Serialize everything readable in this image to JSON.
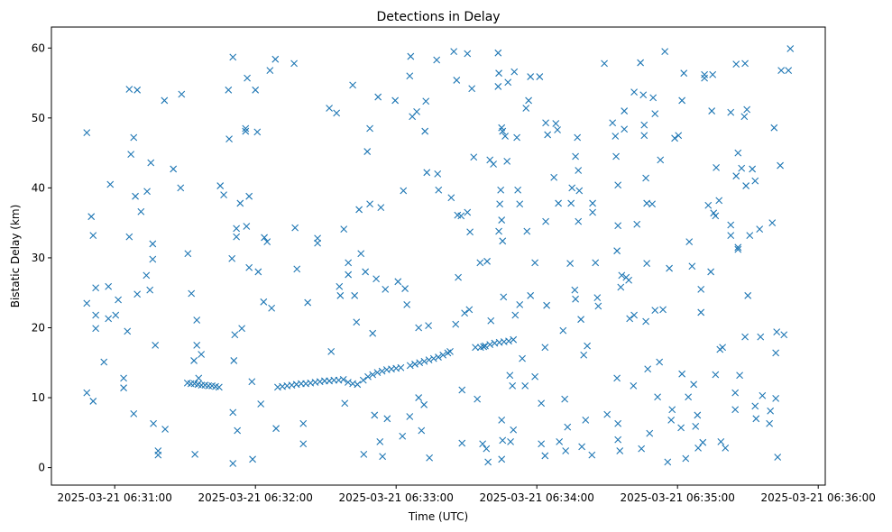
{
  "chart_data": {
    "type": "scatter",
    "title": "Detections in Delay",
    "xlabel": "Time (UTC)",
    "ylabel": "Bistatic Delay (km)",
    "x_units": "seconds after 2025-03-21 06:30:00",
    "xlim": [
      33,
      363
    ],
    "ylim": [
      -2.5,
      63
    ],
    "grid": false,
    "marker": "x",
    "color": "#1f77b4",
    "x_ticks": [
      {
        "value": 60,
        "label": "2025-03-21 06:31:00"
      },
      {
        "value": 120,
        "label": "2025-03-21 06:32:00"
      },
      {
        "value": 180,
        "label": "2025-03-21 06:33:00"
      },
      {
        "value": 240,
        "label": "2025-03-21 06:34:00"
      },
      {
        "value": 300,
        "label": "2025-03-21 06:35:00"
      },
      {
        "value": 360,
        "label": "2025-03-21 06:36:00"
      }
    ],
    "y_ticks": [
      {
        "value": 0,
        "label": "0"
      },
      {
        "value": 10,
        "label": "10"
      },
      {
        "value": 20,
        "label": "20"
      },
      {
        "value": 30,
        "label": "30"
      },
      {
        "value": 40,
        "label": "40"
      },
      {
        "value": 50,
        "label": "50"
      },
      {
        "value": 60,
        "label": "60"
      }
    ],
    "points": [
      [
        48.1,
        47.9
      ],
      [
        48.1,
        10.7
      ],
      [
        48.1,
        23.5
      ],
      [
        50.0,
        35.9
      ],
      [
        50.8,
        33.2
      ],
      [
        50.8,
        9.5
      ],
      [
        51.9,
        25.7
      ],
      [
        51.9,
        21.8
      ],
      [
        51.9,
        19.9
      ],
      [
        55.4,
        15.1
      ],
      [
        57.3,
        25.9
      ],
      [
        57.3,
        21.3
      ],
      [
        58.1,
        40.5
      ],
      [
        60.4,
        21.8
      ],
      [
        61.5,
        24.0
      ],
      [
        63.8,
        11.4
      ],
      [
        63.8,
        12.8
      ],
      [
        65.4,
        19.5
      ],
      [
        66.2,
        33.0
      ],
      [
        66.2,
        54.1
      ],
      [
        66.9,
        44.8
      ],
      [
        68.1,
        47.2
      ],
      [
        68.1,
        7.7
      ],
      [
        68.8,
        38.8
      ],
      [
        69.6,
        54.0
      ],
      [
        69.6,
        24.8
      ],
      [
        71.2,
        36.6
      ],
      [
        73.5,
        27.5
      ],
      [
        73.8,
        39.5
      ],
      [
        75.0,
        25.4
      ],
      [
        75.4,
        43.6
      ],
      [
        76.2,
        29.8
      ],
      [
        76.2,
        32.0
      ],
      [
        76.5,
        6.3
      ],
      [
        77.3,
        17.5
      ],
      [
        78.5,
        2.4
      ],
      [
        78.5,
        1.8
      ],
      [
        81.2,
        52.5
      ],
      [
        81.5,
        5.5
      ],
      [
        85.0,
        42.7
      ],
      [
        88.1,
        40.0
      ],
      [
        88.5,
        53.4
      ],
      [
        91.2,
        30.6
      ],
      [
        92.7,
        24.9
      ],
      [
        93.8,
        15.3
      ],
      [
        95.0,
        21.1
      ],
      [
        95.0,
        17.5
      ],
      [
        94.2,
        1.9
      ],
      [
        95.8,
        12.8
      ],
      [
        96.9,
        16.2
      ],
      [
        91,
        12.1
      ],
      [
        92.5,
        12.0
      ],
      [
        94,
        12.0
      ],
      [
        95.5,
        11.9
      ],
      [
        97,
        11.8
      ],
      [
        98.5,
        11.8
      ],
      [
        100,
        11.7
      ],
      [
        101.5,
        11.7
      ],
      [
        103,
        11.6
      ],
      [
        104.5,
        11.5
      ],
      [
        105.0,
        40.3
      ],
      [
        106.5,
        39.0
      ],
      [
        108.5,
        54.0
      ],
      [
        108.8,
        47.0
      ],
      [
        110.0,
        29.9
      ],
      [
        111.9,
        33.0
      ],
      [
        111.9,
        34.2
      ],
      [
        110.4,
        58.7
      ],
      [
        110.8,
        15.3
      ],
      [
        110.4,
        7.9
      ],
      [
        110.4,
        0.6
      ],
      [
        111.2,
        19.0
      ],
      [
        112.3,
        5.3
      ],
      [
        113.5,
        37.8
      ],
      [
        114.2,
        19.9
      ],
      [
        115.8,
        48.5
      ],
      [
        115.8,
        48.1
      ],
      [
        116.5,
        55.7
      ],
      [
        116.2,
        34.5
      ],
      [
        117.3,
        38.8
      ],
      [
        117.3,
        28.6
      ],
      [
        118.5,
        12.3
      ],
      [
        118.8,
        1.2
      ],
      [
        120.0,
        54.0
      ],
      [
        120.8,
        48.0
      ],
      [
        121.2,
        28.0
      ],
      [
        122.3,
        9.1
      ],
      [
        123.5,
        23.7
      ],
      [
        123.8,
        32.9
      ],
      [
        125.0,
        32.3
      ],
      [
        126.9,
        22.8
      ],
      [
        126.2,
        56.8
      ],
      [
        128.5,
        58.4
      ],
      [
        128.8,
        5.6
      ],
      [
        129.5,
        11.5
      ],
      [
        131.5,
        11.6
      ],
      [
        133.5,
        11.7
      ],
      [
        135.5,
        11.8
      ],
      [
        137.5,
        11.9
      ],
      [
        139.5,
        12.0
      ],
      [
        141.5,
        12.0
      ],
      [
        143.5,
        12.1
      ],
      [
        145.5,
        12.2
      ],
      [
        147.5,
        12.3
      ],
      [
        149.5,
        12.4
      ],
      [
        151.5,
        12.4
      ],
      [
        153.5,
        12.5
      ],
      [
        155.5,
        12.5
      ],
      [
        157.5,
        12.6
      ],
      [
        159.5,
        12.2
      ],
      [
        161.5,
        12.0
      ],
      [
        163.5,
        11.9
      ],
      [
        136.5,
        57.8
      ],
      [
        136.9,
        34.3
      ],
      [
        137.7,
        28.4
      ],
      [
        140.4,
        3.4
      ],
      [
        140.4,
        6.3
      ],
      [
        142.3,
        23.6
      ],
      [
        146.5,
        32.1
      ],
      [
        146.5,
        32.8
      ],
      [
        151.5,
        51.4
      ],
      [
        152.3,
        16.6
      ],
      [
        154.6,
        50.7
      ],
      [
        155.8,
        25.9
      ],
      [
        156.2,
        24.6
      ],
      [
        157.7,
        34.1
      ],
      [
        158.1,
        9.2
      ],
      [
        159.6,
        29.3
      ],
      [
        159.6,
        27.6
      ],
      [
        161.5,
        54.7
      ],
      [
        162.3,
        24.6
      ],
      [
        163.1,
        20.8
      ],
      [
        164.2,
        36.9
      ],
      [
        165.0,
        30.6
      ],
      [
        166.2,
        1.9
      ],
      [
        166.9,
        28.0
      ],
      [
        167.7,
        45.2
      ],
      [
        168.8,
        48.5
      ],
      [
        168.8,
        37.7
      ],
      [
        170.0,
        19.2
      ],
      [
        170.8,
        7.5
      ],
      [
        171.5,
        27.0
      ],
      [
        172.3,
        53.0
      ],
      [
        173.1,
        3.7
      ],
      [
        173.5,
        37.2
      ],
      [
        174.2,
        1.6
      ],
      [
        175.4,
        25.5
      ],
      [
        176.2,
        7.0
      ],
      [
        166,
        12.5
      ],
      [
        168,
        13.0
      ],
      [
        170,
        13.3
      ],
      [
        172,
        13.6
      ],
      [
        174,
        13.8
      ],
      [
        176,
        14.0
      ],
      [
        178,
        14.1
      ],
      [
        180,
        14.2
      ],
      [
        182,
        14.3
      ],
      [
        179.6,
        52.5
      ],
      [
        180.8,
        26.6
      ],
      [
        182.7,
        4.5
      ],
      [
        183.1,
        39.6
      ],
      [
        183.8,
        25.6
      ],
      [
        184.6,
        23.3
      ],
      [
        185.8,
        7.3
      ],
      [
        185.8,
        56.0
      ],
      [
        186.2,
        58.8
      ],
      [
        186.9,
        50.2
      ],
      [
        188.8,
        50.9
      ],
      [
        189.6,
        20.0
      ],
      [
        189.6,
        10.0
      ],
      [
        190.8,
        5.3
      ],
      [
        191.9,
        9.0
      ],
      [
        192.3,
        48.1
      ],
      [
        192.7,
        52.4
      ],
      [
        193.1,
        42.2
      ],
      [
        193.8,
        20.3
      ],
      [
        194.2,
        1.4
      ],
      [
        197.3,
        58.3
      ],
      [
        197.7,
        42.0
      ],
      [
        198.1,
        39.7
      ],
      [
        186,
        14.6
      ],
      [
        188,
        14.8
      ],
      [
        190,
        15.0
      ],
      [
        192,
        15.2
      ],
      [
        194,
        15.4
      ],
      [
        196,
        15.6
      ],
      [
        198,
        15.8
      ],
      [
        200,
        16.1
      ],
      [
        202,
        16.4
      ],
      [
        203,
        16.6
      ],
      [
        203.5,
        38.6
      ],
      [
        204.6,
        59.5
      ],
      [
        205.4,
        20.5
      ],
      [
        205.8,
        55.4
      ],
      [
        206.2,
        36.1
      ],
      [
        206.5,
        27.2
      ],
      [
        207.7,
        36.0
      ],
      [
        208.1,
        3.5
      ],
      [
        208.1,
        11.1
      ],
      [
        209.2,
        22.1
      ],
      [
        210.4,
        36.5
      ],
      [
        210.4,
        59.2
      ],
      [
        211.2,
        22.6
      ],
      [
        211.5,
        33.7
      ],
      [
        212.3,
        54.2
      ],
      [
        213.1,
        44.4
      ],
      [
        213.8,
        17.2
      ],
      [
        214.6,
        9.8
      ],
      [
        215.8,
        29.3
      ],
      [
        216.9,
        3.4
      ],
      [
        217.3,
        17.3
      ],
      [
        218.5,
        2.7
      ],
      [
        218.8,
        29.5
      ],
      [
        219.2,
        0.8
      ],
      [
        220.0,
        44.0
      ],
      [
        220.4,
        21.0
      ],
      [
        221.5,
        43.4
      ],
      [
        223.5,
        54.5
      ],
      [
        223.5,
        59.3
      ],
      [
        223.8,
        56.4
      ],
      [
        223.8,
        33.8
      ],
      [
        224.2,
        37.7
      ],
      [
        224.6,
        39.7
      ],
      [
        225.0,
        35.4
      ],
      [
        225.0,
        48.6
      ],
      [
        225.4,
        32.4
      ],
      [
        225.0,
        6.8
      ],
      [
        225.0,
        1.2
      ],
      [
        225.4,
        3.9
      ],
      [
        225.8,
        24.4
      ],
      [
        225.4,
        48.1
      ],
      [
        226.5,
        47.4
      ],
      [
        227.3,
        43.8
      ],
      [
        227.7,
        55.1
      ],
      [
        228.5,
        13.2
      ],
      [
        228.8,
        3.7
      ],
      [
        229.6,
        11.7
      ],
      [
        230.0,
        5.4
      ],
      [
        230.4,
        56.6
      ],
      [
        230.8,
        21.8
      ],
      [
        216,
        17.2
      ],
      [
        218,
        17.4
      ],
      [
        220,
        17.6
      ],
      [
        222,
        17.8
      ],
      [
        224,
        17.9
      ],
      [
        226,
        18.0
      ],
      [
        228,
        18.1
      ],
      [
        230,
        18.3
      ],
      [
        231.5,
        47.2
      ],
      [
        231.9,
        39.7
      ],
      [
        232.7,
        37.7
      ],
      [
        232.7,
        23.3
      ],
      [
        233.8,
        15.6
      ],
      [
        235.0,
        11.7
      ],
      [
        235.4,
        51.4
      ],
      [
        235.8,
        33.8
      ],
      [
        236.5,
        52.5
      ],
      [
        237.3,
        55.9
      ],
      [
        237.3,
        24.6
      ],
      [
        239.2,
        29.3
      ],
      [
        239.2,
        13.0
      ],
      [
        241.2,
        55.9
      ],
      [
        241.9,
        3.4
      ],
      [
        241.9,
        9.2
      ],
      [
        243.5,
        1.7
      ],
      [
        243.5,
        17.2
      ],
      [
        244.2,
        23.2
      ],
      [
        243.8,
        35.2
      ],
      [
        243.8,
        49.3
      ],
      [
        244.6,
        47.6
      ],
      [
        247.3,
        41.5
      ],
      [
        248.1,
        49.2
      ],
      [
        248.8,
        48.3
      ],
      [
        249.2,
        37.8
      ],
      [
        249.6,
        3.7
      ],
      [
        251.2,
        19.6
      ],
      [
        251.9,
        9.8
      ],
      [
        252.3,
        2.4
      ],
      [
        253.1,
        5.8
      ],
      [
        254.2,
        29.2
      ],
      [
        254.6,
        37.8
      ],
      [
        255.0,
        40.0
      ],
      [
        256.2,
        25.4
      ],
      [
        256.5,
        24.1
      ],
      [
        256.5,
        44.5
      ],
      [
        257.3,
        47.2
      ],
      [
        257.7,
        42.5
      ],
      [
        257.7,
        35.2
      ],
      [
        258.1,
        39.6
      ],
      [
        258.8,
        21.2
      ],
      [
        259.2,
        3.0
      ],
      [
        260.0,
        16.1
      ],
      [
        260.8,
        6.8
      ],
      [
        261.5,
        17.4
      ],
      [
        263.5,
        1.8
      ],
      [
        263.8,
        37.8
      ],
      [
        263.8,
        36.5
      ],
      [
        265.0,
        29.3
      ],
      [
        265.8,
        24.3
      ],
      [
        266.2,
        23.1
      ],
      [
        268.8,
        57.8
      ],
      [
        270.0,
        7.6
      ],
      [
        272.3,
        49.3
      ],
      [
        273.5,
        47.4
      ],
      [
        273.8,
        44.5
      ],
      [
        274.2,
        12.8
      ],
      [
        274.6,
        40.4
      ],
      [
        274.6,
        34.6
      ],
      [
        274.2,
        31.0
      ],
      [
        274.6,
        6.3
      ],
      [
        274.6,
        4.0
      ],
      [
        275.4,
        2.4
      ],
      [
        275.8,
        25.8
      ],
      [
        276.2,
        27.5
      ],
      [
        277.3,
        48.4
      ],
      [
        277.3,
        51.0
      ],
      [
        278.1,
        27.2
      ],
      [
        279.2,
        26.8
      ],
      [
        279.6,
        21.3
      ],
      [
        281.2,
        11.7
      ],
      [
        281.5,
        53.7
      ],
      [
        281.5,
        21.8
      ],
      [
        282.7,
        34.8
      ],
      [
        284.2,
        57.9
      ],
      [
        284.6,
        2.7
      ],
      [
        285.4,
        53.3
      ],
      [
        285.8,
        47.5
      ],
      [
        285.8,
        49.0
      ],
      [
        286.5,
        20.9
      ],
      [
        286.9,
        29.2
      ],
      [
        286.9,
        37.8
      ],
      [
        286.5,
        41.4
      ],
      [
        287.3,
        14.1
      ],
      [
        288.1,
        4.9
      ],
      [
        289.2,
        37.7
      ],
      [
        289.6,
        52.9
      ],
      [
        290.4,
        22.5
      ],
      [
        290.4,
        50.6
      ],
      [
        291.5,
        10.1
      ],
      [
        292.3,
        15.1
      ],
      [
        292.7,
        44.0
      ],
      [
        293.8,
        22.6
      ],
      [
        294.6,
        59.5
      ],
      [
        295.8,
        0.8
      ],
      [
        296.5,
        28.5
      ],
      [
        297.3,
        6.8
      ],
      [
        297.7,
        8.3
      ],
      [
        298.8,
        47.1
      ],
      [
        300.4,
        47.5
      ],
      [
        301.5,
        5.7
      ],
      [
        301.9,
        52.5
      ],
      [
        301.9,
        13.4
      ],
      [
        302.7,
        56.4
      ],
      [
        303.5,
        1.3
      ],
      [
        304.6,
        10.1
      ],
      [
        305.0,
        32.3
      ],
      [
        306.2,
        28.8
      ],
      [
        306.9,
        11.9
      ],
      [
        307.7,
        5.9
      ],
      [
        308.5,
        7.5
      ],
      [
        308.8,
        2.8
      ],
      [
        310.0,
        25.5
      ],
      [
        310.0,
        22.2
      ],
      [
        310.8,
        3.6
      ],
      [
        311.5,
        56.2
      ],
      [
        311.5,
        55.7
      ],
      [
        313.1,
        37.5
      ],
      [
        314.2,
        28.0
      ],
      [
        314.6,
        51.0
      ],
      [
        315.0,
        56.2
      ],
      [
        315.4,
        36.4
      ],
      [
        316.2,
        36.0
      ],
      [
        316.2,
        13.3
      ],
      [
        316.5,
        42.9
      ],
      [
        317.7,
        38.2
      ],
      [
        318.1,
        16.9
      ],
      [
        318.5,
        3.7
      ],
      [
        319.2,
        17.2
      ],
      [
        320.4,
        2.8
      ],
      [
        322.7,
        34.7
      ],
      [
        322.7,
        33.2
      ],
      [
        322.7,
        50.8
      ],
      [
        324.6,
        8.3
      ],
      [
        324.6,
        10.7
      ],
      [
        325.0,
        41.7
      ],
      [
        325.0,
        57.7
      ],
      [
        325.8,
        31.2
      ],
      [
        325.8,
        31.5
      ],
      [
        325.8,
        45.0
      ],
      [
        326.5,
        13.2
      ],
      [
        327.3,
        42.8
      ],
      [
        328.5,
        50.2
      ],
      [
        329.2,
        40.3
      ],
      [
        330.0,
        24.6
      ],
      [
        328.8,
        57.8
      ],
      [
        328.8,
        18.7
      ],
      [
        329.6,
        51.2
      ],
      [
        330.8,
        33.2
      ],
      [
        331.9,
        42.7
      ],
      [
        333.1,
        8.8
      ],
      [
        333.1,
        41.0
      ],
      [
        333.5,
        7.0
      ],
      [
        335.0,
        34.1
      ],
      [
        335.4,
        18.7
      ],
      [
        336.2,
        10.3
      ],
      [
        339.2,
        6.3
      ],
      [
        339.6,
        8.1
      ],
      [
        340.4,
        35.0
      ],
      [
        341.2,
        48.6
      ],
      [
        341.9,
        9.9
      ],
      [
        341.9,
        16.4
      ],
      [
        342.3,
        19.4
      ],
      [
        342.7,
        1.5
      ],
      [
        343.8,
        43.2
      ],
      [
        344.2,
        56.8
      ],
      [
        345.4,
        19.0
      ],
      [
        347.3,
        56.8
      ],
      [
        348.1,
        59.9
      ]
    ]
  }
}
